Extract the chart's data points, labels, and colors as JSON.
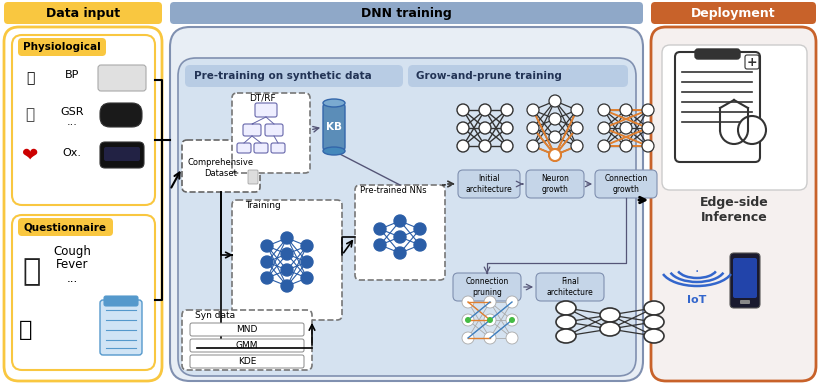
{
  "title_data_input": "Data input",
  "title_dnn_training": "DNN training",
  "title_deployment": "Deployment",
  "title_physiological": "Physiological",
  "title_questionnaire": "Questionnaire",
  "title_pretraining": "Pre-training on synthetic data",
  "title_growprune": "Grow-and-prune training",
  "label_bp": "BP",
  "label_gsr": "GSR",
  "label_ox": "Ox.",
  "label_cough": "Cough",
  "label_fever": "Fever",
  "label_dots": "...",
  "label_comprehensive": "Comprehensive\nDataset",
  "label_training": "Training",
  "label_pretrained": "Pre-trained NNs",
  "label_syndata": "Syn data",
  "label_dtrf": "DT/RF",
  "label_kb": "KB",
  "label_mnd": "MND",
  "label_gmm": "GMM",
  "label_kde": "KDE",
  "label_initial": "Initial\narchitecture",
  "label_neuron": "Neuron\ngrowth",
  "label_connection_growth": "Connection\ngrowth",
  "label_connection_pruning": "Connection\npruning",
  "label_final": "Final\narchitecture",
  "label_edge": "Edge-side\nInference",
  "color_yellow": "#F9C740",
  "color_blue_header": "#8FA8C8",
  "color_orange_hdr": "#C8622A",
  "color_light_blue_box": "#C5D5E8",
  "color_light_blue_inner": "#B8CCE4",
  "color_white": "#FFFFFF",
  "color_node_blue": "#2B5EA7",
  "color_node_orange": "#E08030",
  "color_edge_black": "#333333",
  "color_edge_orange": "#E08030",
  "color_edge_blue": "#4080C0",
  "color_kb_blue": "#5B8DB8",
  "color_deploy_bg": "#F5F0EF"
}
